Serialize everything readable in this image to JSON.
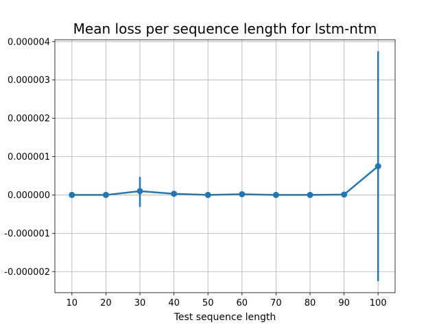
{
  "chart_data": {
    "type": "line",
    "title": "Mean loss per sequence length for lstm-ntm",
    "xlabel": "Test sequence length",
    "ylabel": "",
    "x": [
      10,
      20,
      30,
      40,
      50,
      60,
      70,
      80,
      90,
      100
    ],
    "series": [
      {
        "values": [
          0.0,
          0.0,
          1e-07,
          3e-08,
          0.0,
          2e-08,
          0.0,
          0.0,
          1e-08,
          7.5e-07
        ],
        "error_low": [
          0.0,
          0.0,
          -3.1e-07,
          0.0,
          0.0,
          0.0,
          0.0,
          0.0,
          0.0,
          -2.25e-06
        ],
        "error_high": [
          0.0,
          0.0,
          4.7e-07,
          1e-07,
          0.0,
          0.0,
          0.0,
          0.0,
          0.0,
          3.75e-06
        ],
        "color": "#1f77b4"
      }
    ],
    "xticks": [
      "10",
      "20",
      "30",
      "40",
      "50",
      "60",
      "70",
      "80",
      "90",
      "100"
    ],
    "yticks": [
      "0.000004",
      "0.000003",
      "0.000002",
      "0.000001",
      "0.000000",
      "-0.000001",
      "-0.000002"
    ],
    "ytick_values": [
      4e-06,
      3e-06,
      2e-06,
      1e-06,
      0.0,
      -1e-06,
      -2e-06
    ],
    "xlim": [
      5,
      105
    ],
    "ylim": [
      -2.55e-06,
      4.05e-06
    ],
    "grid": true,
    "colors": {
      "series": "#1f77b4",
      "grid": "#b0b0b0",
      "axis": "#000000"
    }
  }
}
